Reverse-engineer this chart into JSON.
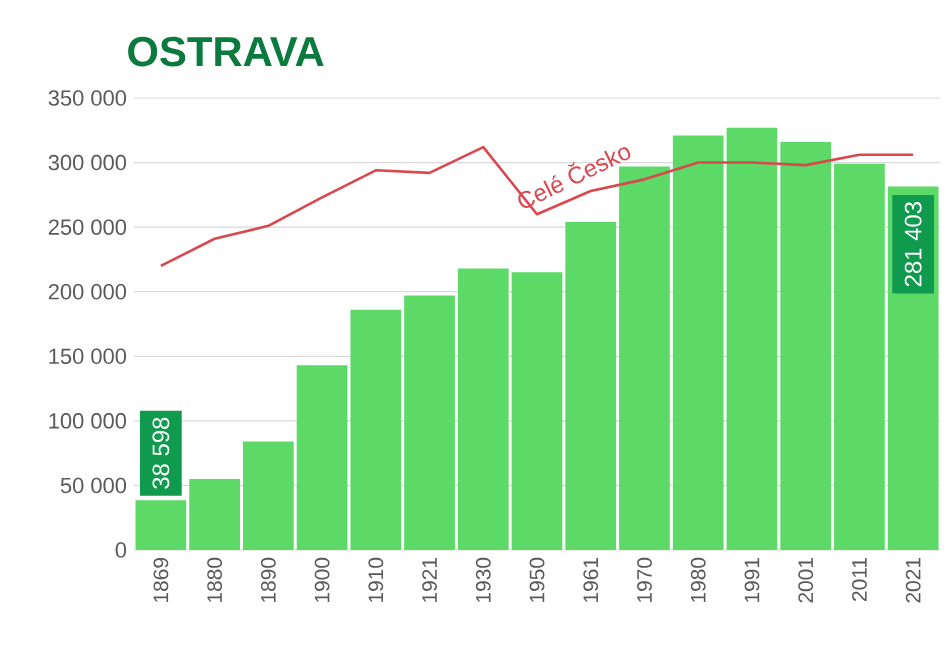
{
  "chart_data": {
    "type": "bar",
    "title": "OSTRAVA",
    "categories": [
      "1869",
      "1880",
      "1890",
      "1900",
      "1910",
      "1921",
      "1930",
      "1950",
      "1961",
      "1970",
      "1980",
      "1991",
      "2001",
      "2011",
      "2021"
    ],
    "series": [
      {
        "color": "#5cd966",
        "values": [
          38598,
          55000,
          84000,
          143000,
          186000,
          197000,
          218000,
          215000,
          254000,
          297000,
          321000,
          327000,
          316000,
          299000,
          281403
        ],
        "value_labels": [
          "38 598",
          null,
          null,
          null,
          null,
          null,
          null,
          null,
          null,
          null,
          null,
          null,
          null,
          null,
          "281 403"
        ]
      },
      {
        "type": "line",
        "name": "Celé Česko",
        "color": "#d9484f",
        "values": [
          220000,
          241000,
          251000,
          273000,
          294000,
          292000,
          312000,
          260000,
          278000,
          287000,
          300000,
          300000,
          298000,
          306000,
          306000
        ]
      }
    ],
    "ylim": [
      0,
      350000
    ],
    "yticks": [
      0,
      {
        "value": 50000,
        "label": "50 000"
      },
      {
        "value": 100000,
        "label": "100 000"
      },
      {
        "value": 150000,
        "label": "150 000"
      },
      {
        "value": 200000,
        "label": "200 000"
      },
      {
        "value": 250000,
        "label": "250 000"
      },
      {
        "value": 300000,
        "label": "300 000"
      },
      {
        "value": 350000,
        "label": "350 000"
      }
    ],
    "grid": "y"
  }
}
